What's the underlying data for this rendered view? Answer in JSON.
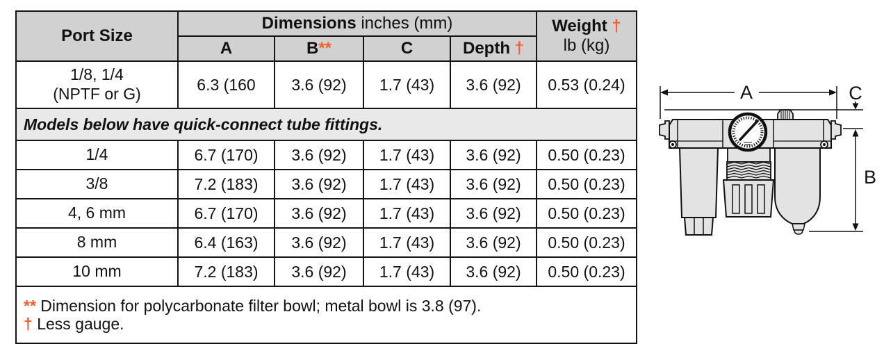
{
  "accent_color": "#f1602f",
  "table": {
    "header": {
      "port_size": "Port Size",
      "dimensions_bold": "Dimensions",
      "dimensions_rest": " inches (mm)",
      "weight_bold": "Weight ",
      "weight_marker": "†",
      "weight_sub": "lb (kg)",
      "col_a": "A",
      "col_b": "B",
      "col_b_marker": "**",
      "col_c": "C",
      "col_depth": "Depth ",
      "col_depth_marker": "†"
    },
    "rows": [
      {
        "port": "1/8, 1/4",
        "port_line2": "(NPTF or G)",
        "a": "6.3 (160",
        "b": "3.6 (92)",
        "c": "1.7 (43)",
        "depth": "3.6 (92)",
        "weight": "0.53 (0.24)"
      },
      {
        "port": "1/4",
        "a": "6.7 (170)",
        "b": "3.6 (92)",
        "c": "1.7 (43)",
        "depth": "3.6 (92)",
        "weight": "0.50 (0.23)"
      },
      {
        "port": "3/8",
        "a": "7.2 (183)",
        "b": "3.6 (92)",
        "c": "1.7 (43)",
        "depth": "3.6 (92)",
        "weight": "0.50 (0.23)"
      },
      {
        "port": "4, 6 mm",
        "a": "6.7 (170)",
        "b": "3.6 (92)",
        "c": "1.7 (43)",
        "depth": "3.6 (92)",
        "weight": "0.50 (0.23)"
      },
      {
        "port": "8 mm",
        "a": "6.4 (163)",
        "b": "3.6 (92)",
        "c": "1.7 (43)",
        "depth": "3.6 (92)",
        "weight": "0.50 (0.23)"
      },
      {
        "port": "10 mm",
        "a": "7.2 (183)",
        "b": "3.6 (92)",
        "c": "1.7 (43)",
        "depth": "3.6 (92)",
        "weight": "0.50 (0.23)"
      }
    ],
    "band": "Models below have quick-connect tube fittings.",
    "footnotes": [
      {
        "marker": "**",
        "text": "Dimension for polycarbonate filter bowl; metal bowl is 3.8 (97)."
      },
      {
        "marker": "†",
        "text": "Less gauge."
      }
    ]
  },
  "diagram": {
    "labels": {
      "a": "A",
      "b": "B",
      "c": "C"
    }
  }
}
